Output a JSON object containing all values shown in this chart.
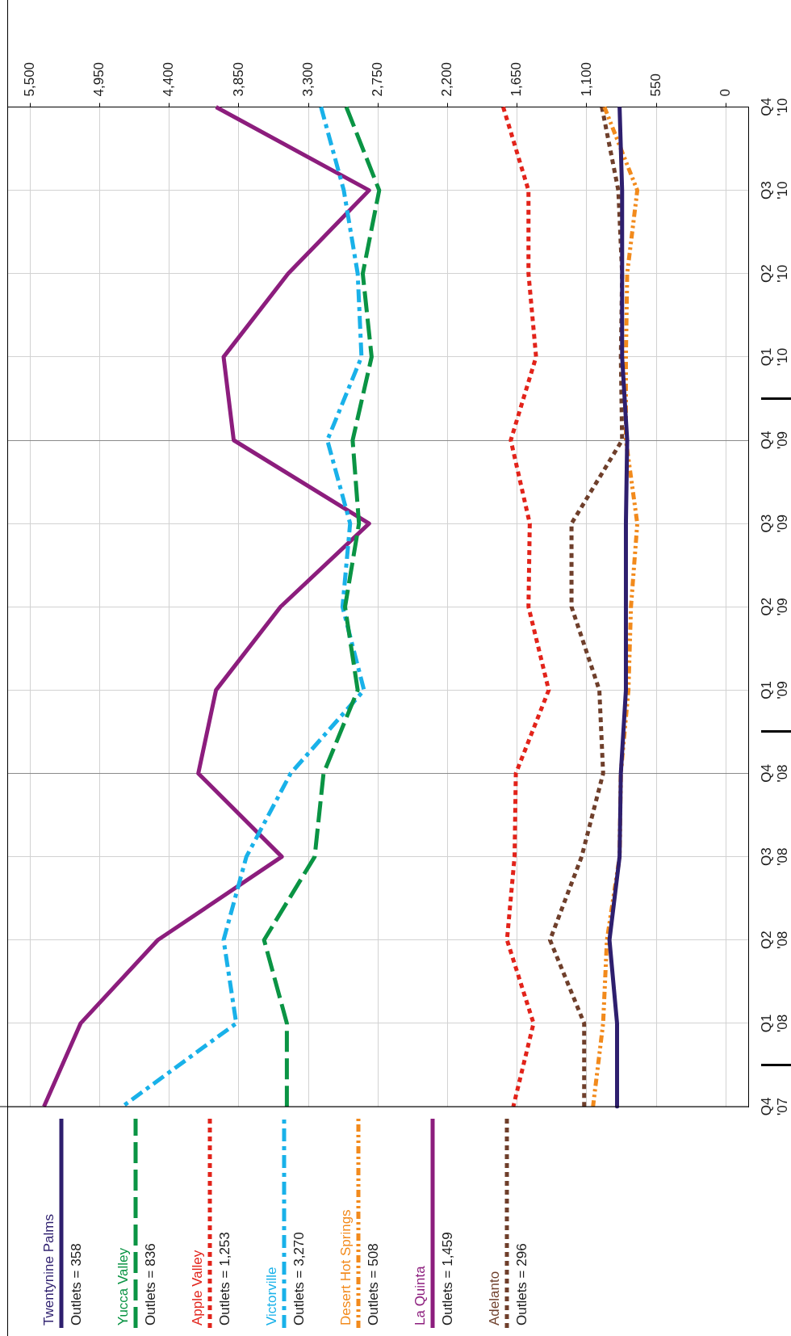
{
  "chart_data": {
    "type": "line",
    "orientation": "horizontal",
    "categories": [
      "Q4 '10",
      "Q3 '10",
      "Q2 '10",
      "Q1 '10",
      "Q4 '09",
      "Q3 '09",
      "Q2 '09",
      "Q1 '09",
      "Q4 '08",
      "Q3 '08",
      "Q2 '08",
      "Q1 '08",
      "Q4 '07"
    ],
    "series": [
      {
        "name": "Twentynine Palms",
        "color": "#2e1f6e",
        "line_style": "solid",
        "values": [
          840,
          820,
          820,
          820,
          780,
          790,
          790,
          790,
          830,
          840,
          920,
          860,
          860
        ]
      },
      {
        "name": "Yucca Valley",
        "color": "#0a9444",
        "line_style": "dashed",
        "values": [
          3000,
          2740,
          2870,
          2800,
          2950,
          2900,
          3010,
          2910,
          3180,
          3250,
          3650,
          3470,
          3470
        ]
      },
      {
        "name": "Apple Valley",
        "color": "#e2231a",
        "line_style": "dotted",
        "values": [
          1760,
          1560,
          1560,
          1500,
          1700,
          1550,
          1560,
          1400,
          1660,
          1670,
          1730,
          1520,
          1680
        ]
      },
      {
        "name": "Victorville",
        "color": "#19b1e9",
        "line_style": "dashdot",
        "values": [
          3200,
          3020,
          2910,
          2880,
          3150,
          2970,
          3030,
          2860,
          3440,
          3790,
          3970,
          3870,
          4770
        ]
      },
      {
        "name": "Desert Hot Springs",
        "color": "#f28a1c",
        "line_style": "dashdotdot",
        "values": [
          960,
          700,
          780,
          790,
          790,
          700,
          750,
          770,
          830,
          840,
          940,
          970,
          1050
        ]
      },
      {
        "name": "La Quinta",
        "color": "#8c1d7d",
        "line_style": "solid",
        "values": [
          4030,
          2820,
          3460,
          3970,
          3890,
          2820,
          3520,
          4030,
          4170,
          3510,
          4490,
          5100,
          5390
        ]
      },
      {
        "name": "Adelanto",
        "color": "#6f3f2b",
        "line_style": "dotted",
        "values": [
          980,
          850,
          820,
          830,
          820,
          1220,
          1220,
          1000,
          970,
          1140,
          1390,
          1120,
          1120
        ]
      }
    ],
    "xlim": [
      5680,
      -180
    ],
    "xticks": [
      0,
      550,
      {
        "value": 1100,
        "label": "1,100"
      },
      {
        "value": 1650,
        "label": "1,650"
      },
      {
        "value": 2200,
        "label": "2,200"
      },
      {
        "value": 2750,
        "label": "2,750"
      },
      {
        "value": 3300,
        "label": "3,300"
      },
      {
        "value": 3850,
        "label": "3,850"
      },
      {
        "value": 4400,
        "label": "4,400"
      },
      {
        "value": 4950,
        "label": "4,950"
      },
      {
        "value": 5500,
        "label": "5,500"
      }
    ],
    "grid": true,
    "legend": "bottom left",
    "marker": "none",
    "annotations": [
      "Outlets = 358",
      "Outlets = 836",
      "Outlets = 1,253",
      "Outlets = 3,270",
      "Outlets = 508",
      "Outlets = 1,459",
      "Outlets = 296"
    ]
  }
}
